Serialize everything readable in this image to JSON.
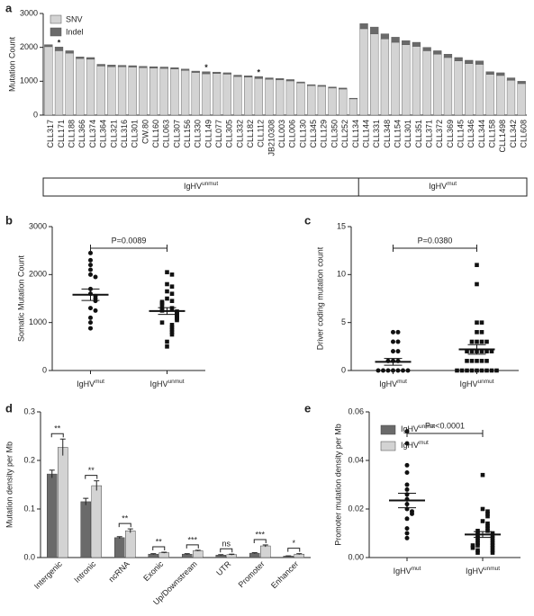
{
  "chart_data": [
    {
      "type": "stacked_bar",
      "panel_label": "a",
      "ylabel": "Mutation Count",
      "categories": [
        "CLL317",
        "CLL171",
        "CLL188",
        "CLL366",
        "CLL374",
        "CLL364",
        "CLL321",
        "CLL316",
        "CLL301",
        "CW.80",
        "CLL160",
        "CLL063",
        "CLL307",
        "CLL156",
        "CLL330",
        "CLL149",
        "CLL077",
        "CLL305",
        "CLL332",
        "CLL182",
        "CLL112",
        "JB210308",
        "CLL003",
        "CLL006",
        "CLL130",
        "CLL345",
        "CLL129",
        "CLL350",
        "CLL252",
        "CLL134",
        "CLL144",
        "CLL331",
        "CLL348",
        "CLL154",
        "CLL301",
        "CLL351",
        "CLL371",
        "CLL372",
        "CLL369",
        "CLL145",
        "CLL346",
        "CLL344",
        "CLL158",
        "CLL1498",
        "CLL342",
        "CLL608"
      ],
      "series": [
        {
          "name": "SNV",
          "color": "#d3d3d3",
          "values": [
            2020,
            1900,
            1830,
            1670,
            1650,
            1450,
            1430,
            1430,
            1420,
            1400,
            1390,
            1380,
            1360,
            1320,
            1260,
            1220,
            1230,
            1210,
            1140,
            1120,
            1080,
            1060,
            1040,
            1010,
            950,
            870,
            850,
            800,
            770,
            480,
            2550,
            2400,
            2250,
            2150,
            2080,
            2030,
            1900,
            1800,
            1700,
            1600,
            1520,
            1500,
            1200,
            1170,
            1030,
            930
          ]
        },
        {
          "name": "Indel",
          "color": "#6a6a6a",
          "values": [
            60,
            110,
            70,
            50,
            50,
            50,
            50,
            40,
            40,
            40,
            40,
            40,
            40,
            40,
            40,
            60,
            40,
            40,
            40,
            40,
            60,
            40,
            40,
            40,
            30,
            30,
            30,
            30,
            30,
            20,
            150,
            200,
            150,
            150,
            120,
            120,
            100,
            100,
            100,
            100,
            100,
            100,
            80,
            80,
            70,
            70
          ]
        }
      ],
      "ylim": [
        0,
        3000
      ],
      "yticks": [
        0,
        1000,
        2000,
        3000
      ],
      "annotations": [
        {
          "text": "*",
          "category": "CLL171"
        },
        {
          "text": "*",
          "category": "CLL149"
        },
        {
          "text": "*",
          "category": "CLL112"
        }
      ],
      "groups": [
        {
          "text": "IgHV",
          "sup": "unmut",
          "first": "CLL317",
          "last": "CLL134"
        },
        {
          "text": "IgHV",
          "sup": "mut",
          "first": "CLL144",
          "last": "CLL608"
        }
      ]
    },
    {
      "type": "dot_plot",
      "panel_label": "b",
      "ylabel": "Somatic Mutation Count",
      "pvalue": "P=0.0089",
      "ylim": [
        0,
        3000
      ],
      "yticks": [
        0,
        1000,
        2000,
        3000
      ],
      "groups": [
        {
          "text": "IgHV",
          "sup": "mut",
          "marker": "circle",
          "mean": 1580,
          "sem": 120,
          "values": [
            2450,
            2300,
            2200,
            2100,
            2000,
            1950,
            1700,
            1600,
            1550,
            1500,
            1450,
            1300,
            1250,
            1100,
            1000,
            880
          ]
        },
        {
          "text": "IgHV",
          "sup": "unmut",
          "marker": "square",
          "mean": 1240,
          "sem": 70,
          "values": [
            2050,
            2000,
            1800,
            1750,
            1650,
            1600,
            1500,
            1450,
            1430,
            1400,
            1350,
            1300,
            1280,
            1250,
            1230,
            1200,
            1180,
            1150,
            1120,
            1100,
            1080,
            1050,
            1000,
            950,
            900,
            850,
            800,
            750,
            600,
            500
          ]
        }
      ]
    },
    {
      "type": "dot_plot",
      "panel_label": "c",
      "ylabel": "Driver coding mutation count",
      "pvalue": "P=0.0380",
      "ylim": [
        0,
        15
      ],
      "yticks": [
        0,
        5,
        10,
        15
      ],
      "groups": [
        {
          "text": "IgHV",
          "sup": "mut",
          "marker": "circle",
          "mean": 0.9,
          "sem": 0.35,
          "values": [
            4,
            4,
            3,
            3,
            2,
            2,
            1,
            1,
            1,
            0,
            0,
            0,
            0,
            0,
            0,
            0
          ]
        },
        {
          "text": "IgHV",
          "sup": "unmut",
          "marker": "square",
          "mean": 2.2,
          "sem": 0.5,
          "values": [
            11,
            9,
            5,
            5,
            4,
            4,
            3,
            3,
            3,
            3,
            2,
            2,
            2,
            2,
            2,
            2,
            1,
            1,
            1,
            1,
            1,
            0,
            0,
            0,
            0,
            0,
            0,
            0,
            0,
            0
          ]
        }
      ]
    },
    {
      "type": "grouped_bar",
      "panel_label": "d",
      "ylabel": "Mutation density per Mb",
      "categories": [
        "Intergenic",
        "Intronic",
        "ncRNA",
        "Exonic",
        "Up/Downstream",
        "UTR",
        "Promoter",
        "Enhancer"
      ],
      "series": [
        {
          "name": "IgHV",
          "name_sup": "unmut",
          "color": "#6a6a6a",
          "values": [
            0.172,
            0.115,
            0.041,
            0.007,
            0.007,
            0.005,
            0.009,
            0.003
          ],
          "error": [
            0.008,
            0.007,
            0.002,
            0.001,
            0.001,
            0.001,
            0.001,
            0.0005
          ]
        },
        {
          "name": "IgHV",
          "name_sup": "mut",
          "color": "#d3d3d3",
          "values": [
            0.227,
            0.148,
            0.055,
            0.01,
            0.014,
            0.006,
            0.024,
            0.007
          ],
          "error": [
            0.017,
            0.01,
            0.004,
            0.001,
            0.001,
            0.001,
            0.002,
            0.001
          ]
        }
      ],
      "significance": [
        "**",
        "**",
        "**",
        "**",
        "***",
        "ns",
        "***",
        "*"
      ],
      "ylim": [
        0,
        0.3
      ],
      "yticks": [
        {
          "value": 0,
          "label": "0.0"
        },
        0.1,
        0.2,
        0.3
      ]
    },
    {
      "type": "dot_plot",
      "panel_label": "e",
      "ylabel": "Promoter mutation density per Mb",
      "pvalue": "P=<0.0001",
      "ylim": [
        0,
        0.06
      ],
      "yticks": [
        {
          "value": 0,
          "label": "0.00"
        },
        0.02,
        0.04,
        0.06
      ],
      "groups": [
        {
          "text": "IgHV",
          "sup": "mut",
          "marker": "circle",
          "mean": 0.0235,
          "sem": 0.003,
          "values": [
            0.052,
            0.047,
            0.038,
            0.035,
            0.03,
            0.028,
            0.026,
            0.024,
            0.022,
            0.02,
            0.019,
            0.018,
            0.016,
            0.012,
            0.01,
            0.008
          ]
        },
        {
          "text": "IgHV",
          "sup": "unmut",
          "marker": "square",
          "mean": 0.0095,
          "sem": 0.0012,
          "values": [
            0.034,
            0.02,
            0.019,
            0.018,
            0.017,
            0.015,
            0.014,
            0.013,
            0.012,
            0.011,
            0.011,
            0.01,
            0.01,
            0.009,
            0.009,
            0.008,
            0.008,
            0.007,
            0.007,
            0.006,
            0.006,
            0.005,
            0.005,
            0.005,
            0.004,
            0.004,
            0.003,
            0.003,
            0.002,
            0.002
          ]
        }
      ]
    }
  ]
}
